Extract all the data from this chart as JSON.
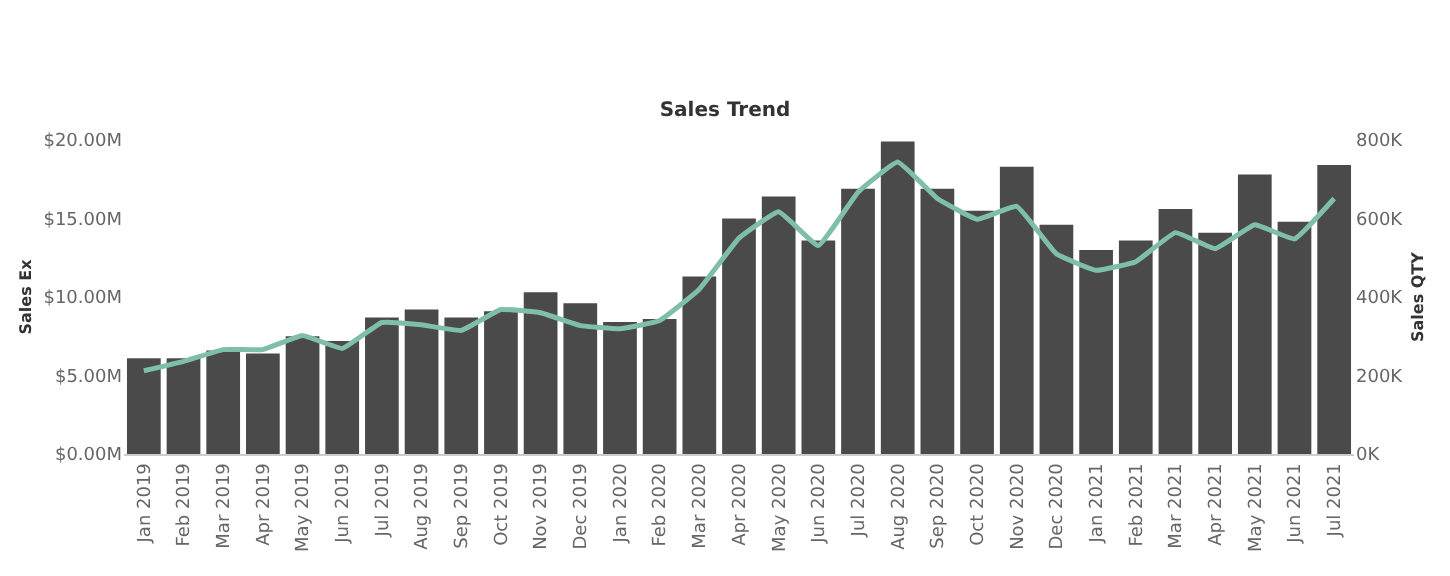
{
  "chart_data": {
    "type": "bar",
    "title": "Sales Trend",
    "ylabel": "Sales Ex",
    "y2label": "Sales QTY",
    "categories": [
      "Jan 2019",
      "Feb 2019",
      "Mar 2019",
      "Apr 2019",
      "May 2019",
      "Jun 2019",
      "Jul 2019",
      "Aug 2019",
      "Sep 2019",
      "Oct 2019",
      "Nov 2019",
      "Dec 2019",
      "Jan 2020",
      "Feb 2020",
      "Mar 2020",
      "Apr 2020",
      "May 2020",
      "Jun 2020",
      "Jul 2020",
      "Aug 2020",
      "Sep 2020",
      "Oct 2020",
      "Nov 2020",
      "Dec 2020",
      "Jan 2021",
      "Feb 2021",
      "Mar 2021",
      "Apr 2021",
      "May 2021",
      "Jun 2021",
      "Jul 2021"
    ],
    "series": [
      {
        "color": "#4a4a4a",
        "values": [
          6.1,
          6.1,
          6.6,
          6.4,
          7.5,
          7.2,
          8.7,
          9.2,
          8.7,
          9.1,
          10.3,
          9.6,
          8.4,
          8.6,
          11.3,
          15.0,
          16.4,
          13.6,
          16.9,
          19.9,
          16.9,
          15.5,
          18.3,
          14.6,
          13.0,
          13.6,
          15.6,
          14.1,
          17.8,
          14.8,
          18.4
        ]
      },
      {
        "type": "line",
        "axis": "y2",
        "color": "#7fbfa8",
        "values": [
          212,
          236,
          266,
          266,
          302,
          269,
          335,
          329,
          315,
          368,
          360,
          327,
          319,
          340,
          420,
          550,
          617,
          531,
          667,
          744,
          651,
          598,
          631,
          510,
          468,
          490,
          564,
          523,
          584,
          548,
          651
        ]
      }
    ],
    "ylim": [
      0,
      20
    ],
    "yticks": [
      {
        "value": 0,
        "label": "$0.00M"
      },
      {
        "value": 5,
        "label": "$5.00M"
      },
      {
        "value": 10,
        "label": "$10.00M"
      },
      {
        "value": 15,
        "label": "$15.00M"
      },
      {
        "value": 20,
        "label": "$20.00M"
      }
    ],
    "y2lim": [
      0,
      800
    ],
    "y2ticks": [
      {
        "value": 0,
        "label": "0K"
      },
      {
        "value": 200,
        "label": "200K"
      },
      {
        "value": 400,
        "label": "400K"
      },
      {
        "value": 600,
        "label": "600K"
      },
      {
        "value": 800,
        "label": "800K"
      }
    ],
    "marker": "none",
    "line_style": "solid"
  }
}
